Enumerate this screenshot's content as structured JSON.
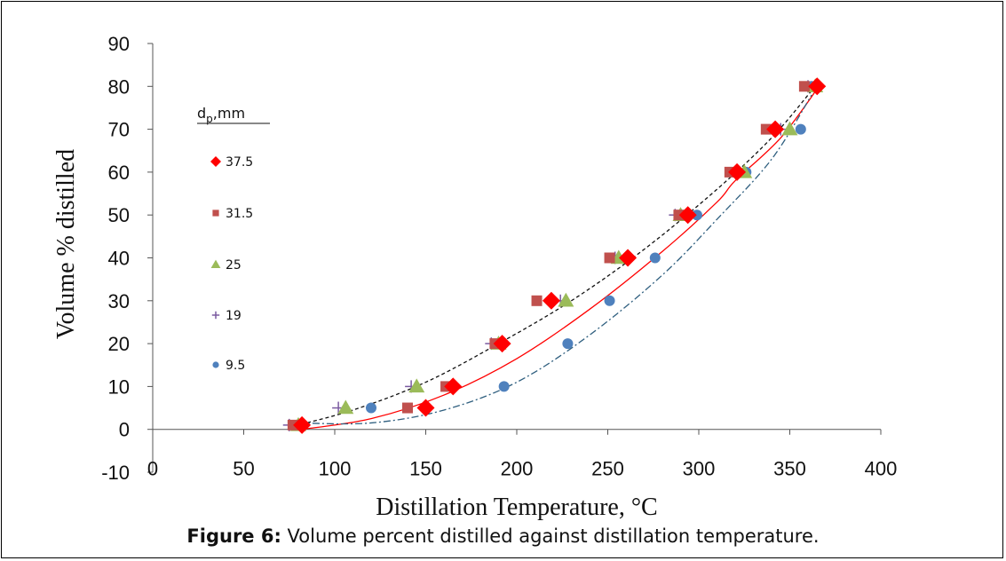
{
  "caption": {
    "label": "Figure 6:",
    "text": " Volume percent distilled against distillation temperature."
  },
  "chart_data": {
    "type": "scatter",
    "xlabel": "Distillation Temperature, °C",
    "ylabel": "Volume % distilled",
    "xlim": [
      0,
      400
    ],
    "ylim": [
      -10,
      90
    ],
    "x_ticks": [
      0,
      50,
      100,
      150,
      200,
      250,
      300,
      350,
      400
    ],
    "y_ticks": [
      -10,
      0,
      10,
      20,
      30,
      40,
      50,
      60,
      70,
      80,
      90
    ],
    "grid": false,
    "legend": {
      "title_main": "d",
      "title_sub": "p",
      "title_rest": ",mm",
      "placement": "left"
    },
    "series": [
      {
        "name": "37.5",
        "marker": "diamond",
        "color": "#ff0000",
        "points": [
          [
            82,
            1
          ],
          [
            150,
            5
          ],
          [
            165,
            10
          ],
          [
            192,
            20
          ],
          [
            219,
            30
          ],
          [
            261,
            40
          ],
          [
            294,
            50
          ],
          [
            321,
            60
          ],
          [
            342,
            70
          ],
          [
            365,
            80
          ]
        ]
      },
      {
        "name": "31.5",
        "marker": "square",
        "color": "#c0504d",
        "points": [
          [
            77,
            1
          ],
          [
            140,
            5
          ],
          [
            161,
            10
          ],
          [
            188,
            20
          ],
          [
            211,
            30
          ],
          [
            251,
            40
          ],
          [
            289,
            50
          ],
          [
            317,
            60
          ],
          [
            337,
            70
          ],
          [
            358,
            80
          ]
        ]
      },
      {
        "name": "25",
        "marker": "triangle",
        "color": "#9bbb59",
        "points": [
          [
            80,
            1
          ],
          [
            106,
            5
          ],
          [
            145,
            10
          ],
          [
            190,
            20
          ],
          [
            227,
            30
          ],
          [
            256,
            40
          ],
          [
            290,
            50
          ],
          [
            325,
            60
          ],
          [
            350,
            70
          ],
          [
            364,
            80
          ]
        ]
      },
      {
        "name": "19",
        "marker": "plus",
        "color": "#7a5aa0",
        "points": [
          [
            75,
            1
          ],
          [
            102,
            5
          ],
          [
            142,
            10
          ],
          [
            186,
            20
          ],
          [
            224,
            30
          ],
          [
            254,
            40
          ],
          [
            287,
            50
          ],
          [
            322,
            60
          ],
          [
            345,
            70
          ],
          [
            360,
            80
          ]
        ]
      },
      {
        "name": "9.5",
        "marker": "circle",
        "color": "#4f81bd",
        "points": [
          [
            82,
            1
          ],
          [
            120,
            5
          ],
          [
            193,
            10
          ],
          [
            228,
            20
          ],
          [
            251,
            30
          ],
          [
            276,
            40
          ],
          [
            299,
            50
          ],
          [
            326,
            60
          ],
          [
            356,
            70
          ],
          [
            362,
            80
          ]
        ]
      }
    ],
    "trendlines": [
      {
        "color": "#ff0000",
        "style": "solid",
        "points": [
          [
            82,
            0
          ],
          [
            120,
            2.5
          ],
          [
            160,
            8
          ],
          [
            200,
            16.5
          ],
          [
            240,
            28
          ],
          [
            280,
            41.5
          ],
          [
            310,
            53
          ],
          [
            320,
            58
          ],
          [
            345,
            68
          ],
          [
            366,
            80
          ]
        ]
      },
      {
        "color": "#111111",
        "style": "dashed",
        "points": [
          [
            75,
            0.5
          ],
          [
            110,
            4.5
          ],
          [
            150,
            11
          ],
          [
            190,
            20
          ],
          [
            230,
            30
          ],
          [
            270,
            42
          ],
          [
            310,
            56
          ],
          [
            340,
            68
          ],
          [
            362,
            79
          ]
        ]
      },
      {
        "color": "#2f5f7f",
        "style": "dashdot",
        "points": [
          [
            80,
            1.5
          ],
          [
            120,
            1.5
          ],
          [
            160,
            4.5
          ],
          [
            200,
            11
          ],
          [
            240,
            22
          ],
          [
            280,
            36
          ],
          [
            310,
            49
          ],
          [
            340,
            63
          ],
          [
            362,
            78
          ]
        ]
      }
    ]
  }
}
